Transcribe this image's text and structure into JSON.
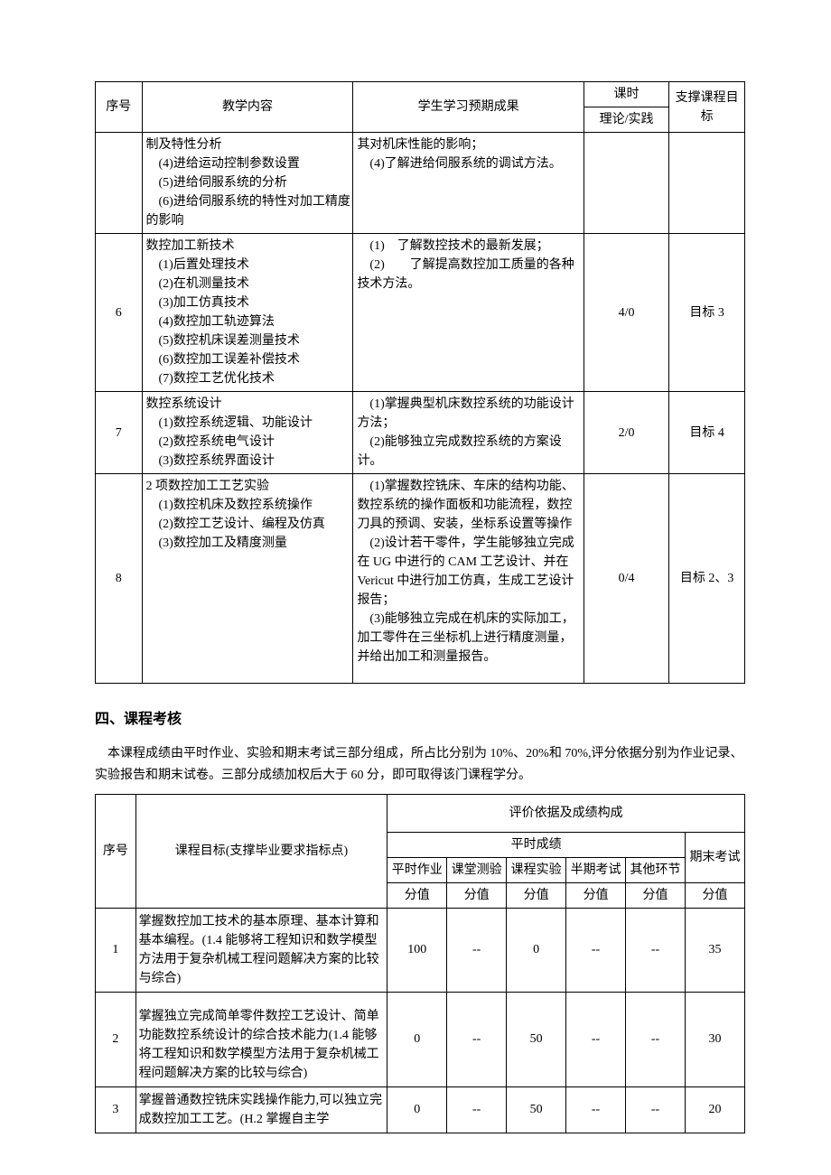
{
  "table1": {
    "headers": {
      "seq": "序号",
      "content": "教学内容",
      "outcome": "学生学习预期成果",
      "hours_group": "课时",
      "hours_sub": "理论/实践",
      "goal": "支撑课程目标"
    },
    "rows": [
      {
        "seq": "",
        "content_html": "制及特性分析\n　(4)进给运动控制参数设置\n　(5)进给伺服系统的分析\n　(6)进给伺服系统的特性对加工精度的影响",
        "outcome_html": "其对机床性能的影响；\n　(4)了解进给伺服系统的调试方法。",
        "hours": "",
        "goal": ""
      },
      {
        "seq": "6",
        "content_html": "数控加工新技术\n　(1)后置处理技术\n　(2)在机测量技术\n　(3)加工仿真技术\n　(4)数控加工轨迹算法\n　(5)数控机床误差测量技术\n　(6)数控加工误差补偿技术\n　(7)数控工艺优化技术",
        "outcome_html": "　(1)　了解数控技术的最新发展；\n　(2)　　了解提高数控加工质量的各种技术方法。",
        "hours": "4/0",
        "goal": "目标 3"
      },
      {
        "seq": "7",
        "content_html": "数控系统设计\n　(1)数控系统逻辑、功能设计\n　(2)数控系统电气设计\n　(3)数控系统界面设计",
        "outcome_html": "　(1)掌握典型机床数控系统的功能设计方法；\n　(2)能够独立完成数控系统的方案设计。",
        "hours": "2/0",
        "goal": "目标 4"
      },
      {
        "seq": "8",
        "content_html": "2 项数控加工工艺实验\n　(1)数控机床及数控系统操作\n　(2)数控工艺设计、编程及仿真\n　(3)数控加工及精度测量",
        "outcome_html": "　(1)掌握数控铣床、车床的结构功能、数控系统的操作面板和功能流程，数控刀具的预调、安装，坐标系设置等操作\n　(2)设计若干零件，学生能够独立完成在 UG 中进行的 CAM 工艺设计、并在Vericut 中进行加工仿真，生成工艺设计报告；\n　(3)能够独立完成在机床的实际加工，加工零件在三坐标机上进行精度测量，并给出加工和测量报告。",
        "hours": "0/4",
        "goal": "目标 2、3"
      }
    ]
  },
  "section_heading": "四、课程考核",
  "section_para": "本课程成绩由平时作业、实验和期末考试三部分组成，所占比分别为 10%、20%和 70%,评分依据分别为作业记录、实验报告和期末试卷。三部分成绩加权后大于 60 分，即可取得该门课程学分。",
  "table2": {
    "headers": {
      "seq": "序号",
      "target": "课程目标(支撑毕业要求指标点)",
      "eval_group": "评价依据及成绩构成",
      "usual_group": "平时成绩",
      "final_exam": "期末考试",
      "sub": {
        "hw": "平时作业",
        "quiz": "课堂测验",
        "lab": "课程实验",
        "midterm": "半期考试",
        "other": "其他环节"
      },
      "score_label": "分值"
    },
    "rows": [
      {
        "seq": "1",
        "target": "掌握数控加工技术的基本原理、基本计算和基本编程。(1.4 能够将工程知识和数学模型方法用于复杂机械工程问题解决方案的比较与综合)",
        "hw": "100",
        "quiz": "--",
        "lab": "0",
        "midterm": "--",
        "other": "--",
        "final": "35"
      },
      {
        "seq": "2",
        "target": "掌握独立完成简单零件数控工艺设计、简单功能数控系统设计的综合技术能力(1.4 能够将工程知识和数学模型方法用于复杂机械工程问题解决方案的比较与综合)",
        "hw": "0",
        "quiz": "--",
        "lab": "50",
        "midterm": "--",
        "other": "--",
        "final": "30"
      },
      {
        "seq": "3",
        "target": "掌握普通数控铣床实践操作能力,可以独立完成数控加工工艺。(H.2 掌握自主学",
        "hw": "0",
        "quiz": "--",
        "lab": "50",
        "midterm": "--",
        "other": "--",
        "final": "20"
      }
    ]
  }
}
